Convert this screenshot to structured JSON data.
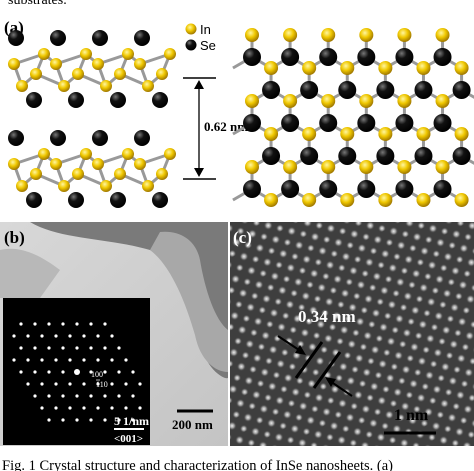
{
  "header": {
    "text": "substrates."
  },
  "panels": [
    {
      "label": "(a)",
      "legend": [
        {
          "label": "In"
        },
        {
          "label": "Se"
        }
      ],
      "annotation": "0.62 nm"
    },
    {
      "label": "(b)",
      "scale_bar": "200 nm",
      "inset": {
        "scale_bar": "5 1/nm",
        "zone_axis": "<001>",
        "spots": [
          "100",
          "110"
        ]
      }
    },
    {
      "label": "(c)",
      "annotation": "0.34 nm",
      "scale_bar": "1 nm"
    }
  ],
  "caption": "Fig. 1 Crystal structure and characterization of InSe nanosheets. (a)"
}
